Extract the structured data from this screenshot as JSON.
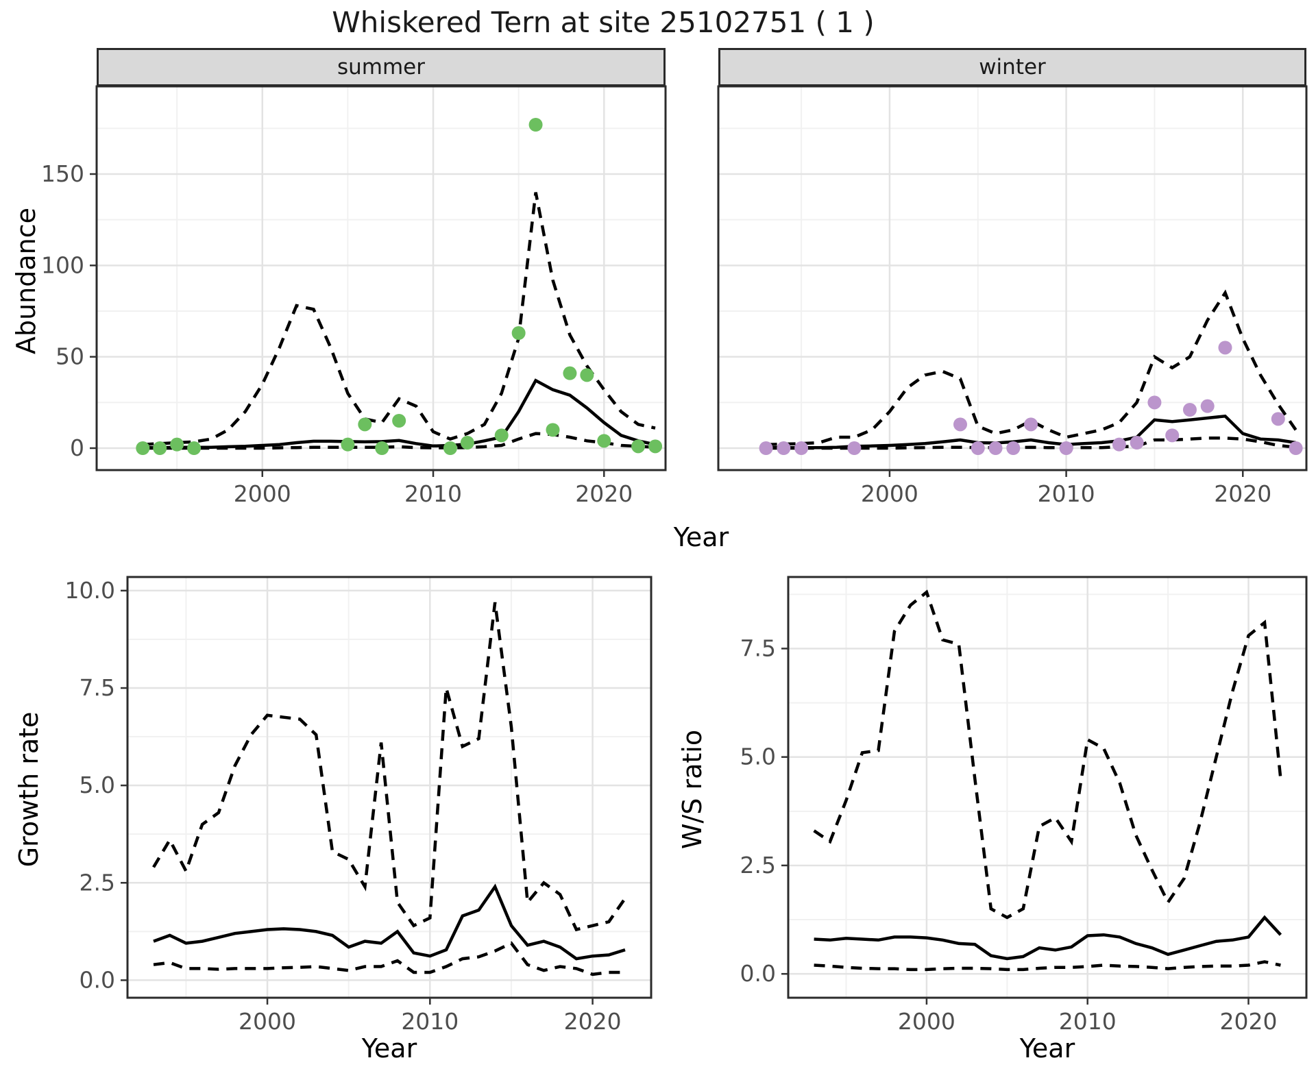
{
  "title": "Whiskered Tern at site 25102751 ( 1 )",
  "facets": {
    "summer": "summer",
    "winter": "winter"
  },
  "axis_labels": {
    "abundance": "Abundance",
    "year_top": "Year",
    "growth": "Growth rate",
    "ws": "W/S ratio",
    "year_growth": "Year",
    "year_ws": "Year"
  },
  "colors": {
    "summer_point": "#6cbf5f",
    "winter_point": "#bb95cc",
    "line": "#000000",
    "strip_bg": "#d9d9d9",
    "panel_border": "#2b2b2b",
    "grid_major": "#e3e3e3",
    "grid_minor": "#f1f1f1",
    "axis_text": "#4d4d4d"
  },
  "chart_data": [
    {
      "id": "abundance-summer",
      "type": "line",
      "facet": "summer",
      "xlabel": "Year",
      "ylabel": "Abundance",
      "x": [
        1993,
        1994,
        1995,
        1996,
        1997,
        1998,
        1999,
        2000,
        2001,
        2002,
        2003,
        2004,
        2005,
        2006,
        2007,
        2008,
        2009,
        2010,
        2011,
        2012,
        2013,
        2014,
        2015,
        2016,
        2017,
        2018,
        2019,
        2020,
        2021,
        2022,
        2023
      ],
      "series": [
        {
          "name": "median",
          "style": "solid",
          "values": [
            0.3,
            0.3,
            0.5,
            0.5,
            0.5,
            0.8,
            1,
            1.5,
            2,
            3,
            3.8,
            3.8,
            3.6,
            3.5,
            3.6,
            4.2,
            2.5,
            1.2,
            1.5,
            2.2,
            4,
            6,
            20,
            37,
            32,
            29,
            22,
            14,
            7,
            4,
            2
          ]
        },
        {
          "name": "upper_ci",
          "style": "dashed",
          "values": [
            2,
            2.5,
            3,
            3.5,
            5,
            10,
            20,
            35,
            55,
            78,
            76,
            55,
            30,
            16,
            14,
            27,
            23,
            9,
            5,
            8,
            13,
            30,
            60,
            140,
            92,
            62,
            45,
            32,
            20,
            13,
            11
          ]
        },
        {
          "name": "lower_ci",
          "style": "dashed",
          "values": [
            0,
            0,
            0,
            0,
            0,
            0,
            0,
            0,
            0.2,
            0.3,
            0.5,
            0.5,
            0.5,
            0.5,
            0.5,
            0.8,
            0.3,
            0.2,
            0.2,
            0.3,
            0.8,
            1.5,
            5,
            8,
            7.5,
            6,
            4,
            3,
            1.5,
            1,
            0.5
          ]
        }
      ],
      "points": {
        "name": "observed-counts-summer",
        "color": "#6cbf5f",
        "xy": [
          [
            1993,
            0
          ],
          [
            1994,
            0
          ],
          [
            1995,
            2
          ],
          [
            1996,
            0
          ],
          [
            2005,
            2
          ],
          [
            2006,
            13
          ],
          [
            2007,
            0
          ],
          [
            2008,
            15
          ],
          [
            2011,
            0
          ],
          [
            2012,
            3
          ],
          [
            2014,
            7
          ],
          [
            2015,
            63
          ],
          [
            2016,
            177
          ],
          [
            2017,
            10
          ],
          [
            2018,
            41
          ],
          [
            2019,
            40
          ],
          [
            2020,
            4
          ],
          [
            2022,
            1
          ],
          [
            2023,
            1
          ]
        ]
      },
      "xlim": [
        1990.3,
        2023.6
      ],
      "ylim": [
        -12,
        198
      ],
      "xticks": [
        2000,
        2010,
        2020
      ],
      "xtick_labels": [
        "2000",
        "2010",
        "2020"
      ],
      "yticks": [
        0,
        50,
        100,
        150
      ],
      "ytick_labels": [
        "0",
        "50",
        "100",
        "150"
      ],
      "minor_xticks": [
        1995,
        2005,
        2015
      ],
      "minor_yticks": [
        25,
        75,
        125,
        175
      ],
      "grid": true,
      "legend": "none"
    },
    {
      "id": "abundance-winter",
      "type": "line",
      "facet": "winter",
      "xlabel": "Year",
      "ylabel": "Abundance",
      "x": [
        1993,
        1994,
        1995,
        1996,
        1997,
        1998,
        1999,
        2000,
        2001,
        2002,
        2003,
        2004,
        2005,
        2006,
        2007,
        2008,
        2009,
        2010,
        2011,
        2012,
        2013,
        2014,
        2015,
        2016,
        2017,
        2018,
        2019,
        2020,
        2021,
        2022,
        2023
      ],
      "series": [
        {
          "name": "median",
          "style": "solid",
          "values": [
            0.3,
            0.3,
            0.3,
            0.3,
            0.5,
            1,
            1.2,
            1.5,
            2,
            2.5,
            3.5,
            4.5,
            3,
            2.8,
            3.5,
            4.5,
            3,
            2,
            2.5,
            3,
            4,
            6,
            15.5,
            14.5,
            15.5,
            16.5,
            17.5,
            8,
            5,
            4.5,
            3
          ]
        },
        {
          "name": "upper_ci",
          "style": "dashed",
          "values": [
            2,
            2.2,
            2.5,
            3,
            6,
            6,
            10,
            20,
            33,
            40,
            42,
            38,
            12,
            8,
            10,
            15,
            10,
            6,
            8,
            10,
            14,
            25,
            50,
            44,
            50,
            70,
            85,
            60,
            40,
            24,
            10
          ]
        },
        {
          "name": "lower_ci",
          "style": "dashed",
          "values": [
            0,
            0,
            0,
            0,
            0,
            0,
            0,
            0,
            0.2,
            0.3,
            0.5,
            0.5,
            0.3,
            0.3,
            0.3,
            0.5,
            0.3,
            0.2,
            0.3,
            0.3,
            0.8,
            1,
            4.5,
            4.5,
            5,
            5.5,
            5.5,
            5,
            3.5,
            1.5,
            0.5
          ]
        }
      ],
      "points": {
        "name": "observed-counts-winter",
        "color": "#bb95cc",
        "xy": [
          [
            1993,
            0
          ],
          [
            1994,
            0
          ],
          [
            1995,
            0
          ],
          [
            1998,
            0
          ],
          [
            2004,
            13
          ],
          [
            2005,
            0
          ],
          [
            2006,
            0
          ],
          [
            2007,
            0
          ],
          [
            2008,
            13
          ],
          [
            2010,
            0
          ],
          [
            2013,
            2
          ],
          [
            2014,
            3
          ],
          [
            2015,
            25
          ],
          [
            2016,
            7
          ],
          [
            2017,
            21
          ],
          [
            2018,
            23
          ],
          [
            2019,
            55
          ],
          [
            2022,
            16
          ],
          [
            2023,
            0
          ]
        ]
      },
      "xlim": [
        1990.3,
        2023.6
      ],
      "ylim": [
        -12,
        198
      ],
      "xticks": [
        2000,
        2010,
        2020
      ],
      "xtick_labels": [
        "2000",
        "2010",
        "2020"
      ],
      "yticks": [
        0,
        50,
        100,
        150
      ],
      "ytick_labels": [],
      "minor_xticks": [
        1995,
        2005,
        2015
      ],
      "minor_yticks": [
        25,
        75,
        125,
        175
      ],
      "grid": true,
      "legend": "none"
    },
    {
      "id": "growth-rate",
      "type": "line",
      "xlabel": "Year",
      "ylabel": "Growth rate",
      "x": [
        1993,
        1994,
        1995,
        1996,
        1997,
        1998,
        1999,
        2000,
        2001,
        2002,
        2003,
        2004,
        2005,
        2006,
        2007,
        2008,
        2009,
        2010,
        2011,
        2012,
        2013,
        2014,
        2015,
        2016,
        2017,
        2018,
        2019,
        2020,
        2021,
        2022
      ],
      "series": [
        {
          "name": "median",
          "style": "solid",
          "values": [
            1.0,
            1.15,
            0.95,
            1.0,
            1.1,
            1.2,
            1.25,
            1.3,
            1.32,
            1.3,
            1.25,
            1.15,
            0.85,
            1.0,
            0.95,
            1.25,
            0.7,
            0.62,
            0.78,
            1.65,
            1.8,
            2.4,
            1.4,
            0.9,
            1.0,
            0.85,
            0.55,
            0.62,
            0.65,
            0.78
          ]
        },
        {
          "name": "upper_ci",
          "style": "dashed",
          "values": [
            2.9,
            3.6,
            2.8,
            4.0,
            4.3,
            5.5,
            6.3,
            6.8,
            6.75,
            6.7,
            6.3,
            3.3,
            3.1,
            2.4,
            6.1,
            2.0,
            1.4,
            1.6,
            7.5,
            6.0,
            6.2,
            9.7,
            6.5,
            2.0,
            2.5,
            2.2,
            1.3,
            1.4,
            1.5,
            2.1
          ]
        },
        {
          "name": "lower_ci",
          "style": "dashed",
          "values": [
            0.4,
            0.45,
            0.3,
            0.3,
            0.28,
            0.3,
            0.3,
            0.3,
            0.32,
            0.33,
            0.35,
            0.3,
            0.25,
            0.35,
            0.35,
            0.5,
            0.2,
            0.2,
            0.35,
            0.55,
            0.6,
            0.75,
            0.95,
            0.4,
            0.25,
            0.35,
            0.3,
            0.15,
            0.2,
            0.2
          ]
        }
      ],
      "points": null,
      "xlim": [
        1991.4,
        2023.6
      ],
      "ylim": [
        -0.45,
        10.35
      ],
      "xticks": [
        2000,
        2010,
        2020
      ],
      "xtick_labels": [
        "2000",
        "2010",
        "2020"
      ],
      "yticks": [
        0,
        2.5,
        5.0,
        7.5,
        10.0
      ],
      "ytick_labels": [
        "0.0",
        "2.5",
        "5.0",
        "7.5",
        "10.0"
      ],
      "minor_xticks": [
        1995,
        2005,
        2015
      ],
      "minor_yticks": [
        1.25,
        3.75,
        6.25,
        8.75
      ],
      "grid": true,
      "legend": "none"
    },
    {
      "id": "ws-ratio",
      "type": "line",
      "xlabel": "Year",
      "ylabel": "W/S ratio",
      "x": [
        1993,
        1994,
        1995,
        1996,
        1997,
        1998,
        1999,
        2000,
        2001,
        2002,
        2003,
        2004,
        2005,
        2006,
        2007,
        2008,
        2009,
        2010,
        2011,
        2012,
        2013,
        2014,
        2015,
        2016,
        2017,
        2018,
        2019,
        2020,
        2021,
        2022
      ],
      "series": [
        {
          "name": "median",
          "style": "solid",
          "values": [
            0.8,
            0.78,
            0.82,
            0.8,
            0.78,
            0.85,
            0.85,
            0.83,
            0.78,
            0.7,
            0.68,
            0.42,
            0.35,
            0.4,
            0.6,
            0.55,
            0.62,
            0.88,
            0.9,
            0.85,
            0.7,
            0.6,
            0.45,
            0.55,
            0.65,
            0.75,
            0.78,
            0.85,
            1.3,
            0.9
          ]
        },
        {
          "name": "upper_ci",
          "style": "dashed",
          "values": [
            3.3,
            3.05,
            4.0,
            5.1,
            5.15,
            7.9,
            8.5,
            8.8,
            7.7,
            7.6,
            4.5,
            1.5,
            1.3,
            1.5,
            3.4,
            3.6,
            3.05,
            5.4,
            5.2,
            4.4,
            3.2,
            2.4,
            1.65,
            2.2,
            3.5,
            5.0,
            6.5,
            7.8,
            8.1,
            4.5
          ]
        },
        {
          "name": "lower_ci",
          "style": "dashed",
          "values": [
            0.2,
            0.18,
            0.15,
            0.13,
            0.12,
            0.12,
            0.1,
            0.1,
            0.12,
            0.13,
            0.13,
            0.12,
            0.1,
            0.1,
            0.13,
            0.15,
            0.15,
            0.17,
            0.2,
            0.18,
            0.17,
            0.15,
            0.12,
            0.15,
            0.17,
            0.18,
            0.18,
            0.2,
            0.28,
            0.2
          ]
        }
      ],
      "points": null,
      "xlim": [
        1991.4,
        2023.6
      ],
      "ylim": [
        -0.55,
        9.15
      ],
      "xticks": [
        2000,
        2010,
        2020
      ],
      "xtick_labels": [
        "2000",
        "2010",
        "2020"
      ],
      "yticks": [
        0,
        2.5,
        5.0,
        7.5
      ],
      "ytick_labels": [
        "0.0",
        "2.5",
        "5.0",
        "7.5"
      ],
      "minor_xticks": [
        1995,
        2005,
        2015
      ],
      "minor_yticks": [
        1.25,
        3.75,
        6.25,
        8.75
      ],
      "grid": true,
      "legend": "none"
    }
  ]
}
